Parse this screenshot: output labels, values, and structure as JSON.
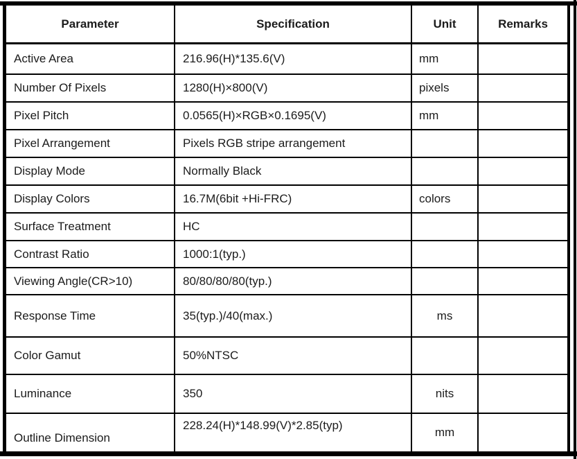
{
  "table": {
    "columns": [
      "Parameter",
      "Specification",
      "Unit",
      "Remarks"
    ],
    "rows": [
      {
        "parameter": "Active Area",
        "specification": "216.96(H)*135.6(V)",
        "unit": "mm",
        "remarks": "",
        "unit_centered": false
      },
      {
        "parameter": "Number Of Pixels",
        "specification": "1280(H)×800(V)",
        "unit": "pixels",
        "remarks": "",
        "unit_centered": false
      },
      {
        "parameter": "Pixel Pitch",
        "specification": "0.0565(H)×RGB×0.1695(V)",
        "unit": "mm",
        "remarks": "",
        "unit_centered": false
      },
      {
        "parameter": "Pixel Arrangement",
        "specification": "Pixels RGB stripe arrangement",
        "unit": "",
        "remarks": "",
        "unit_centered": false
      },
      {
        "parameter": "Display Mode",
        "specification": "Normally Black",
        "unit": "",
        "remarks": "",
        "unit_centered": false
      },
      {
        "parameter": "Display Colors",
        "specification": "16.7M(6bit +Hi-FRC)",
        "unit": "colors",
        "remarks": "",
        "unit_centered": false
      },
      {
        "parameter": "Surface Treatment",
        "specification": "HC",
        "unit": "",
        "remarks": "",
        "unit_centered": false
      },
      {
        "parameter": "Contrast Ratio",
        "specification": "1000:1(typ.)",
        "unit": "",
        "remarks": "",
        "unit_centered": false
      },
      {
        "parameter": "Viewing Angle(CR>10)",
        "specification": "80/80/80/80(typ.)",
        "unit": "",
        "remarks": "",
        "unit_centered": false
      },
      {
        "parameter": "Response Time",
        "specification": "35(typ.)/40(max.)",
        "unit": "ms",
        "remarks": "",
        "unit_centered": true
      },
      {
        "parameter": "Color Gamut",
        "specification": "50%NTSC",
        "unit": "",
        "remarks": "",
        "unit_centered": false
      },
      {
        "parameter": "Luminance",
        "specification": "350",
        "unit": "nits",
        "remarks": "",
        "unit_centered": true
      },
      {
        "parameter": "Outline Dimension",
        "specification": "228.24(H)*148.99(V)*2.85(typ)",
        "unit": "mm",
        "remarks": "",
        "unit_centered": true
      }
    ]
  },
  "colors": {
    "border": "#000000",
    "text": "#1b1b1b",
    "background": "#ffffff"
  }
}
